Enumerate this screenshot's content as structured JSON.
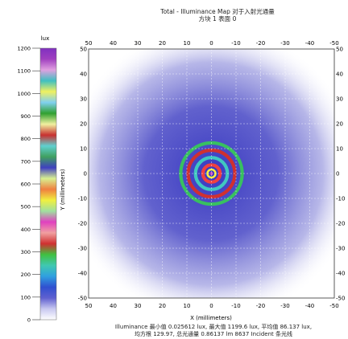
{
  "chart_data": {
    "type": "heatmap",
    "title": "Total - Illuminance Map 对于入射光通量",
    "subtitle": "方块 1 表面 0",
    "xlabel": "X (millimeters)",
    "ylabel": "Y (millimeters)",
    "x_ticks": [
      50,
      40,
      30,
      20,
      10,
      0,
      -10,
      -20,
      -30,
      -40,
      -50
    ],
    "y_ticks": [
      50,
      40,
      30,
      20,
      10,
      0,
      -10,
      -20,
      -30,
      -40,
      -50
    ],
    "xlim": [
      50,
      -50
    ],
    "ylim": [
      -50,
      50
    ],
    "grid": true,
    "colorbar": {
      "unit": "lux",
      "ticks": [
        0,
        100,
        200,
        300,
        400,
        500,
        600,
        700,
        800,
        900,
        1000,
        1100,
        1200
      ],
      "range": [
        0,
        1200
      ]
    },
    "rings": [
      {
        "radius_mm": 3.5,
        "color": "#f04040"
      },
      {
        "radius_mm": 6.5,
        "color": "#40c8c0"
      },
      {
        "radius_mm": 9.5,
        "color": "#d03030"
      },
      {
        "radius_mm": 12.5,
        "color": "#38c060"
      }
    ],
    "stats_line1": "Illuminance 最小值 0.025612 lux, 最大值 1199.6 lux, 平均值 86.137 lux,",
    "stats_line2": "均方根 129.97, 总光通量 0.86137 lm 8637 Incident 条光线"
  },
  "colors": {
    "background_glow": "#4848c8",
    "frame": "#333333",
    "grid": "#ffffff"
  }
}
